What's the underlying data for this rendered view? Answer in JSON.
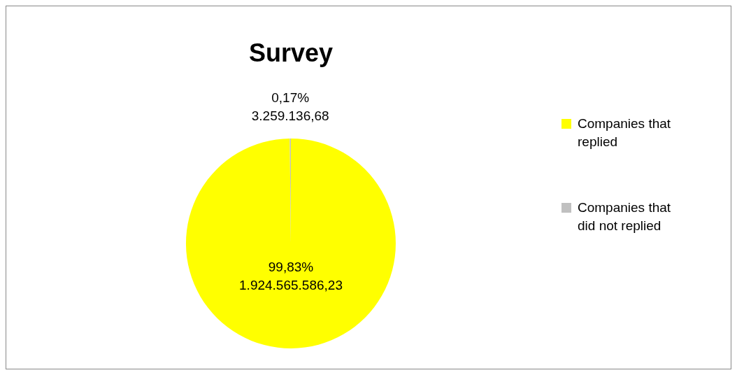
{
  "chart_data": {
    "type": "pie",
    "title": "Survey",
    "categories": [
      "Companies that replied",
      "Companies that did not replied"
    ],
    "values": [
      1924565586.23,
      3259136.68
    ],
    "colors": [
      "#ffff00",
      "#c0c0c0"
    ],
    "value_labels": [
      "99,83%\n1.924.565.586,23",
      "0,17%\n3.259.136,68"
    ],
    "legend": "right"
  }
}
